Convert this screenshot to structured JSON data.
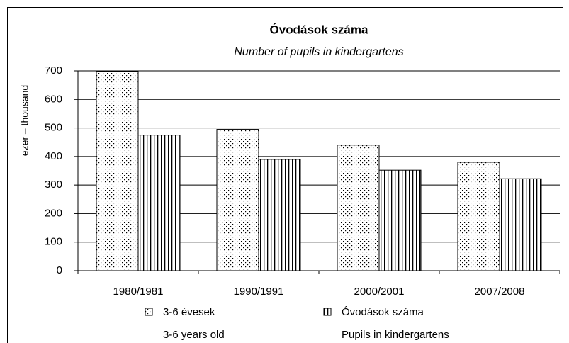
{
  "chart_data": {
    "type": "bar",
    "title": "Óvodások száma",
    "subtitle": "Number of pupils in kindergartens",
    "y_label": "ezer – thousand",
    "categories": [
      "1980/1981",
      "1990/1991",
      "2000/2001",
      "2007/2008"
    ],
    "series": [
      {
        "name": "3-6 évesek",
        "name_en": "3-6 years old",
        "color": "#000000",
        "pattern": "dots",
        "values": [
          698,
          495,
          440,
          380
        ]
      },
      {
        "name": "Óvodások száma",
        "name_en": "Pupils in kindergartens",
        "color": "#000000",
        "pattern": "vertical",
        "values": [
          475,
          390,
          352,
          322
        ]
      }
    ],
    "ylim": [
      0,
      700
    ],
    "yticks": [
      0,
      100,
      200,
      300,
      400,
      500,
      600,
      700
    ],
    "grid": true
  }
}
